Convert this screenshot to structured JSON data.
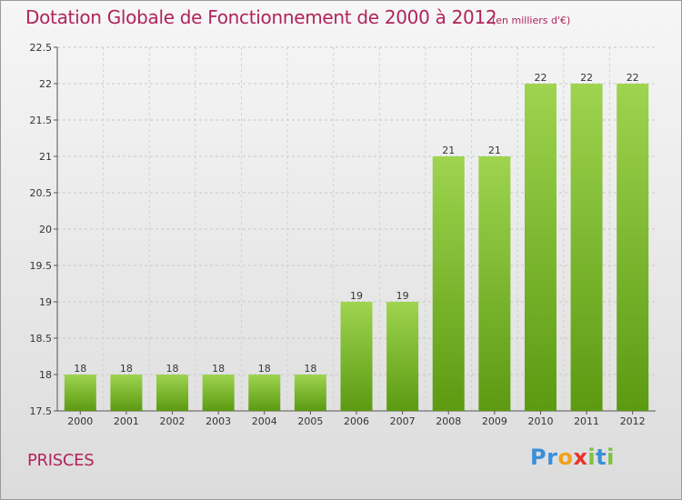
{
  "title": "Dotation Globale de Fonctionnement de 2000 à 2012",
  "subtitle": "(en milliers d'€)",
  "commune": "PRISCES",
  "logo": {
    "text": "Proxiti",
    "letters": [
      {
        "ch": "P",
        "color": "#3a8fd8"
      },
      {
        "ch": "r",
        "color": "#3a8fd8"
      },
      {
        "ch": "o",
        "color": "#f2a11b"
      },
      {
        "ch": "x",
        "color": "#e8342b"
      },
      {
        "ch": "i",
        "color": "#7cc242"
      },
      {
        "ch": "t",
        "color": "#3a8fd8"
      },
      {
        "ch": "i",
        "color": "#7cc242"
      }
    ]
  },
  "colors": {
    "bar_light": "#9ed44f",
    "bar_dark": "#5c9a12",
    "title": "#b0245a"
  },
  "chart_data": {
    "type": "bar",
    "categories": [
      "2000",
      "2001",
      "2002",
      "2003",
      "2004",
      "2005",
      "2006",
      "2007",
      "2008",
      "2009",
      "2010",
      "2011",
      "2012"
    ],
    "values": [
      18,
      18,
      18,
      18,
      18,
      18,
      19,
      19,
      21,
      21,
      22,
      22,
      22
    ],
    "value_labels": [
      "18",
      "18",
      "18",
      "18",
      "18",
      "18",
      "19",
      "19",
      "21",
      "21",
      "22",
      "22",
      "22"
    ],
    "ylim": [
      17.5,
      22.5
    ],
    "yticks": [
      17.5,
      18,
      18.5,
      19,
      19.5,
      20,
      20.5,
      21,
      21.5,
      22,
      22.5
    ],
    "ytick_labels": [
      "17.5",
      "18",
      "18.5",
      "19",
      "19.5",
      "20",
      "20.5",
      "21",
      "21.5",
      "22",
      "22.5"
    ],
    "grid": true,
    "legend": false
  }
}
